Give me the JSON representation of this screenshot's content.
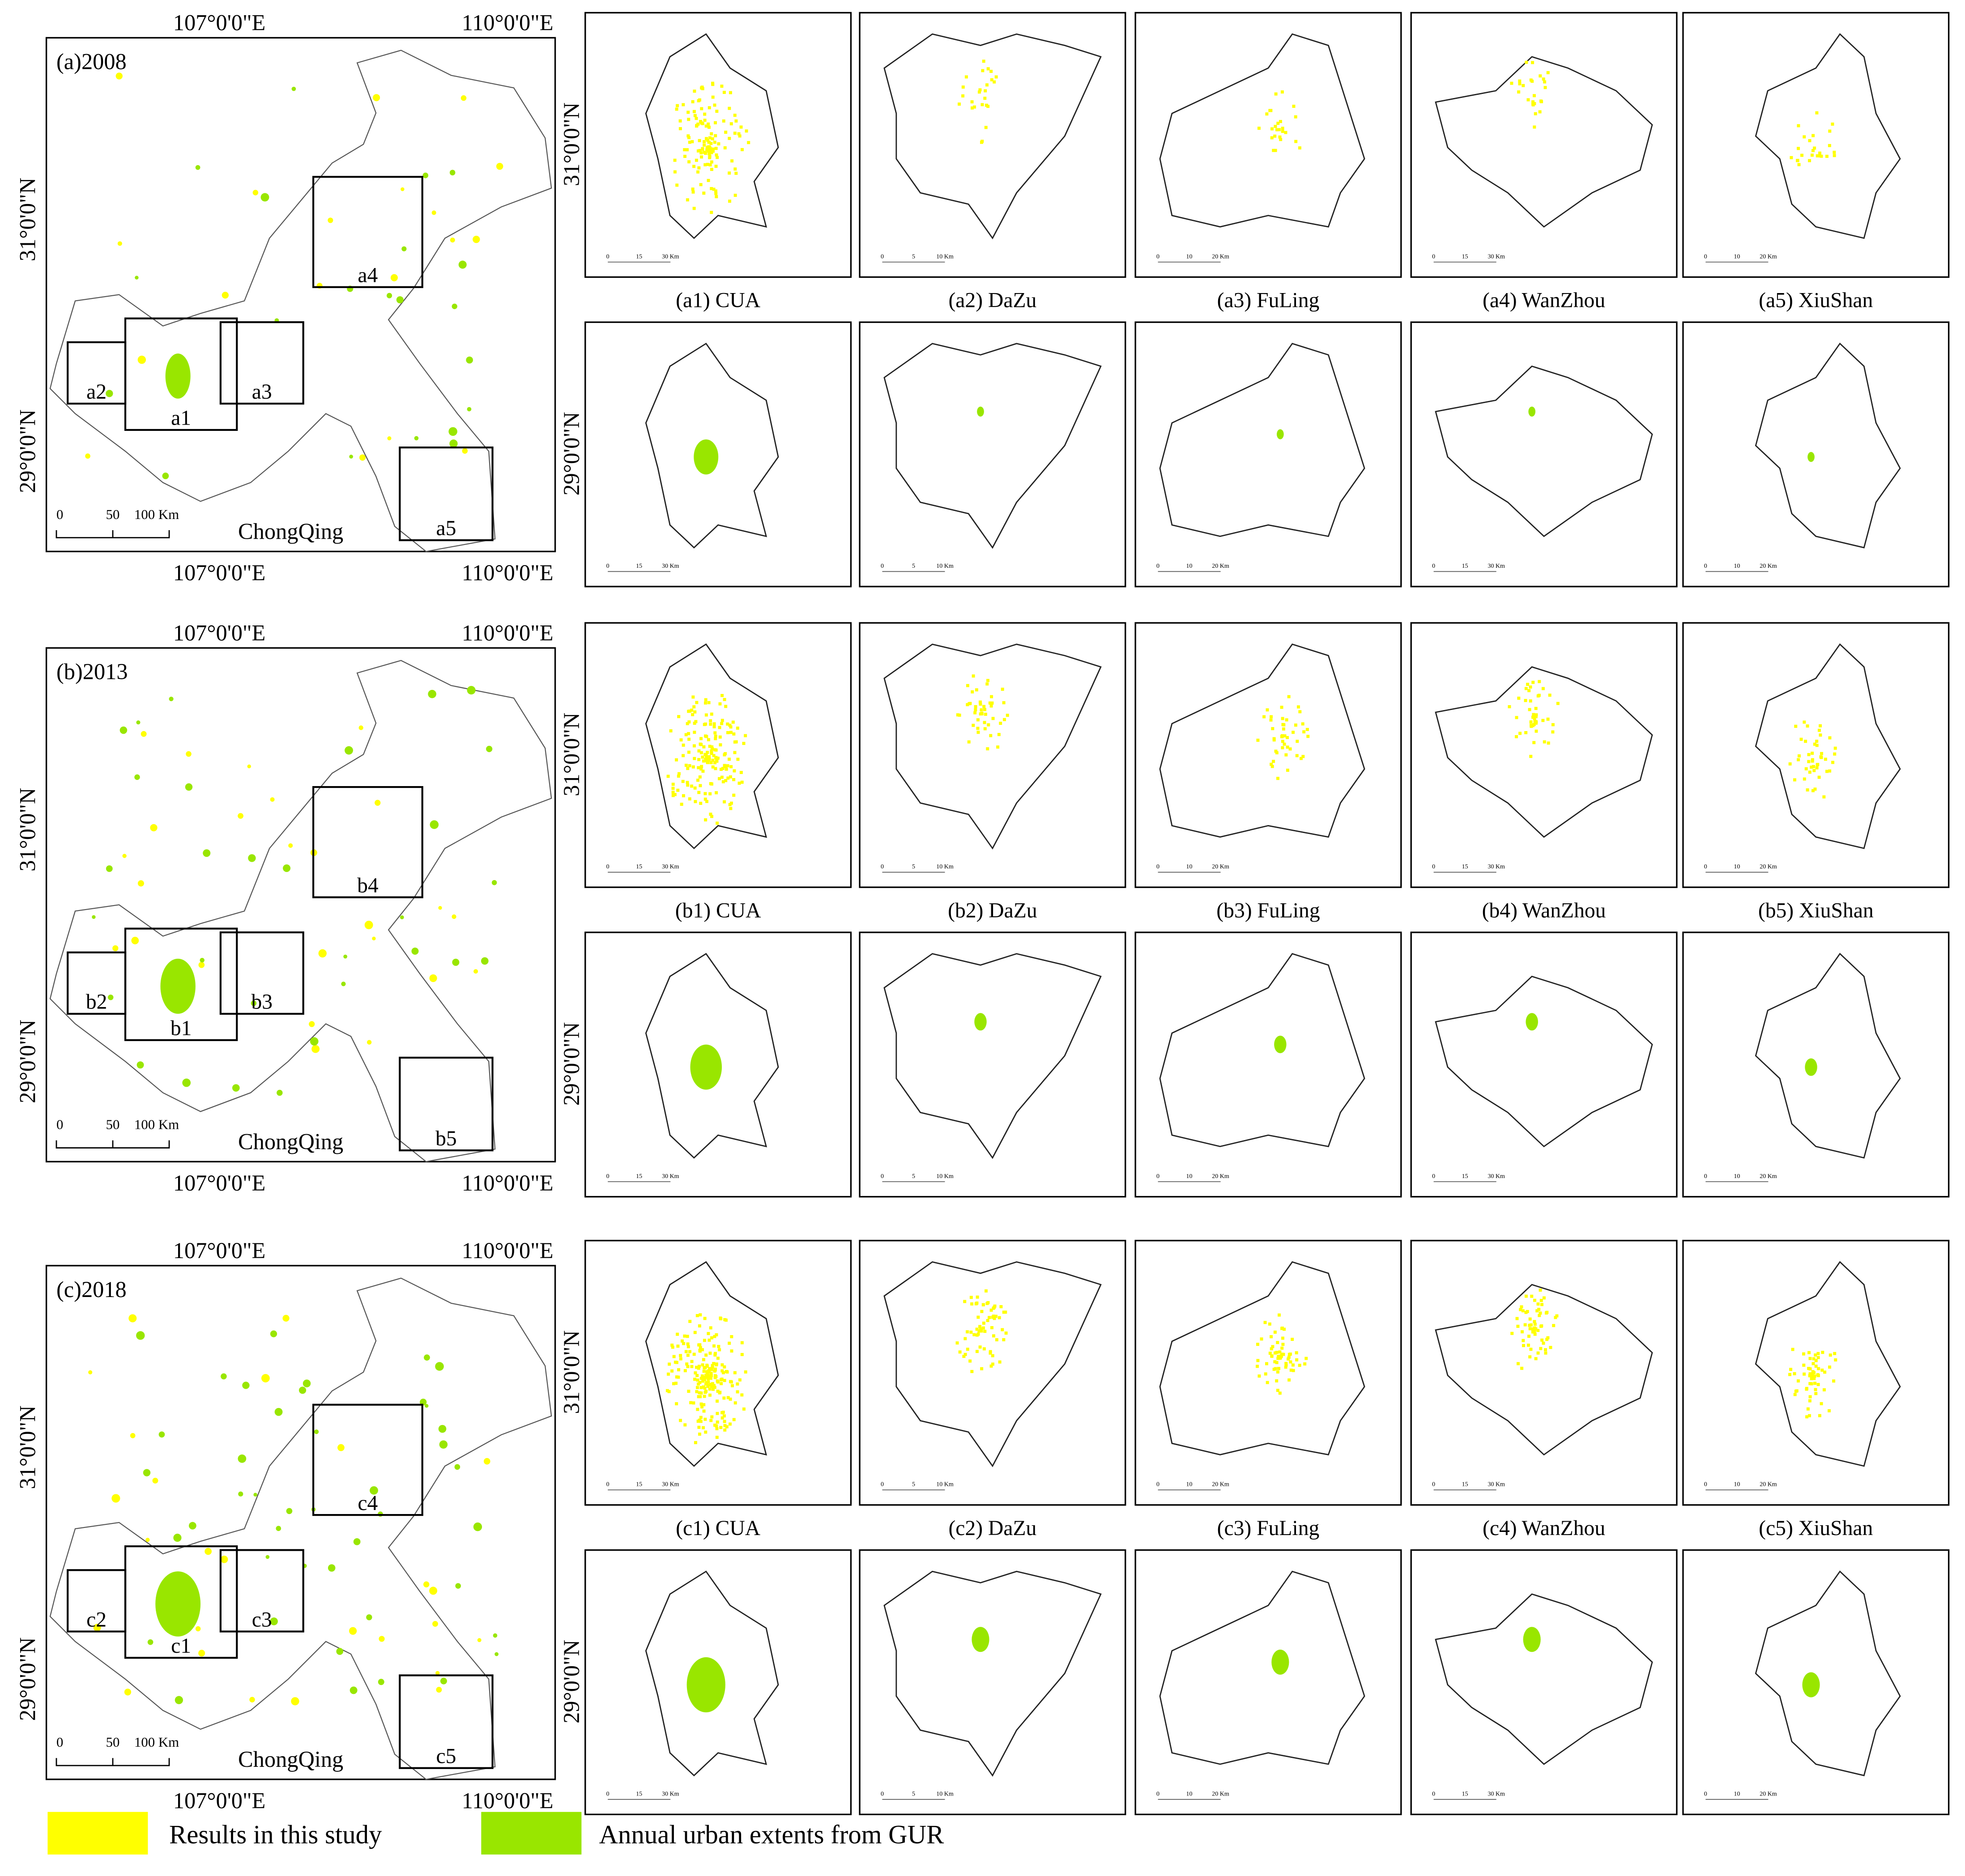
{
  "rows": [
    {
      "title": "(a)2008",
      "boxes": [
        "a1",
        "a2",
        "a3",
        "a4",
        "a5"
      ],
      "captions": [
        "(a1) CUA",
        "(a2) DaZu",
        "(a3) FuLing",
        "(a4) WanZhou",
        "(a5) XiuShan"
      ]
    },
    {
      "title": "(b)2013",
      "boxes": [
        "b1",
        "b2",
        "b3",
        "b4",
        "b5"
      ],
      "captions": [
        "(b1) CUA",
        "(b2) DaZu",
        "(b3) FuLing",
        "(b4) WanZhou",
        "(b5) XiuShan"
      ]
    },
    {
      "title": "(c)2018",
      "boxes": [
        "c1",
        "c2",
        "c3",
        "c4",
        "c5"
      ],
      "captions": [
        "(c1) CUA",
        "(c2) DaZu",
        "(c3) FuLing",
        "(c4) WanZhou",
        "(c5) XiuShan"
      ]
    }
  ],
  "map_labels": {
    "lon_left": "107°0'0\"E",
    "lon_right": "110°0'0\"E",
    "lat_top": "31°0'0\"N",
    "lat_bottom": "29°0'0\"N",
    "scale": [
      "0",
      "50",
      "100 Km"
    ],
    "region": "ChongQing"
  },
  "inset_scales": [
    [
      "0",
      "15",
      "30 Km"
    ],
    [
      "0",
      "5",
      "10 Km"
    ],
    [
      "0",
      "10",
      "20 Km"
    ],
    [
      "0",
      "15",
      "30 Km"
    ],
    [
      "0",
      "10",
      "20 Km"
    ]
  ],
  "legend": [
    {
      "label": "Results in this study",
      "color": "#ffff00"
    },
    {
      "label": "Annual urban extents from GUR",
      "color": "#99e600"
    }
  ]
}
